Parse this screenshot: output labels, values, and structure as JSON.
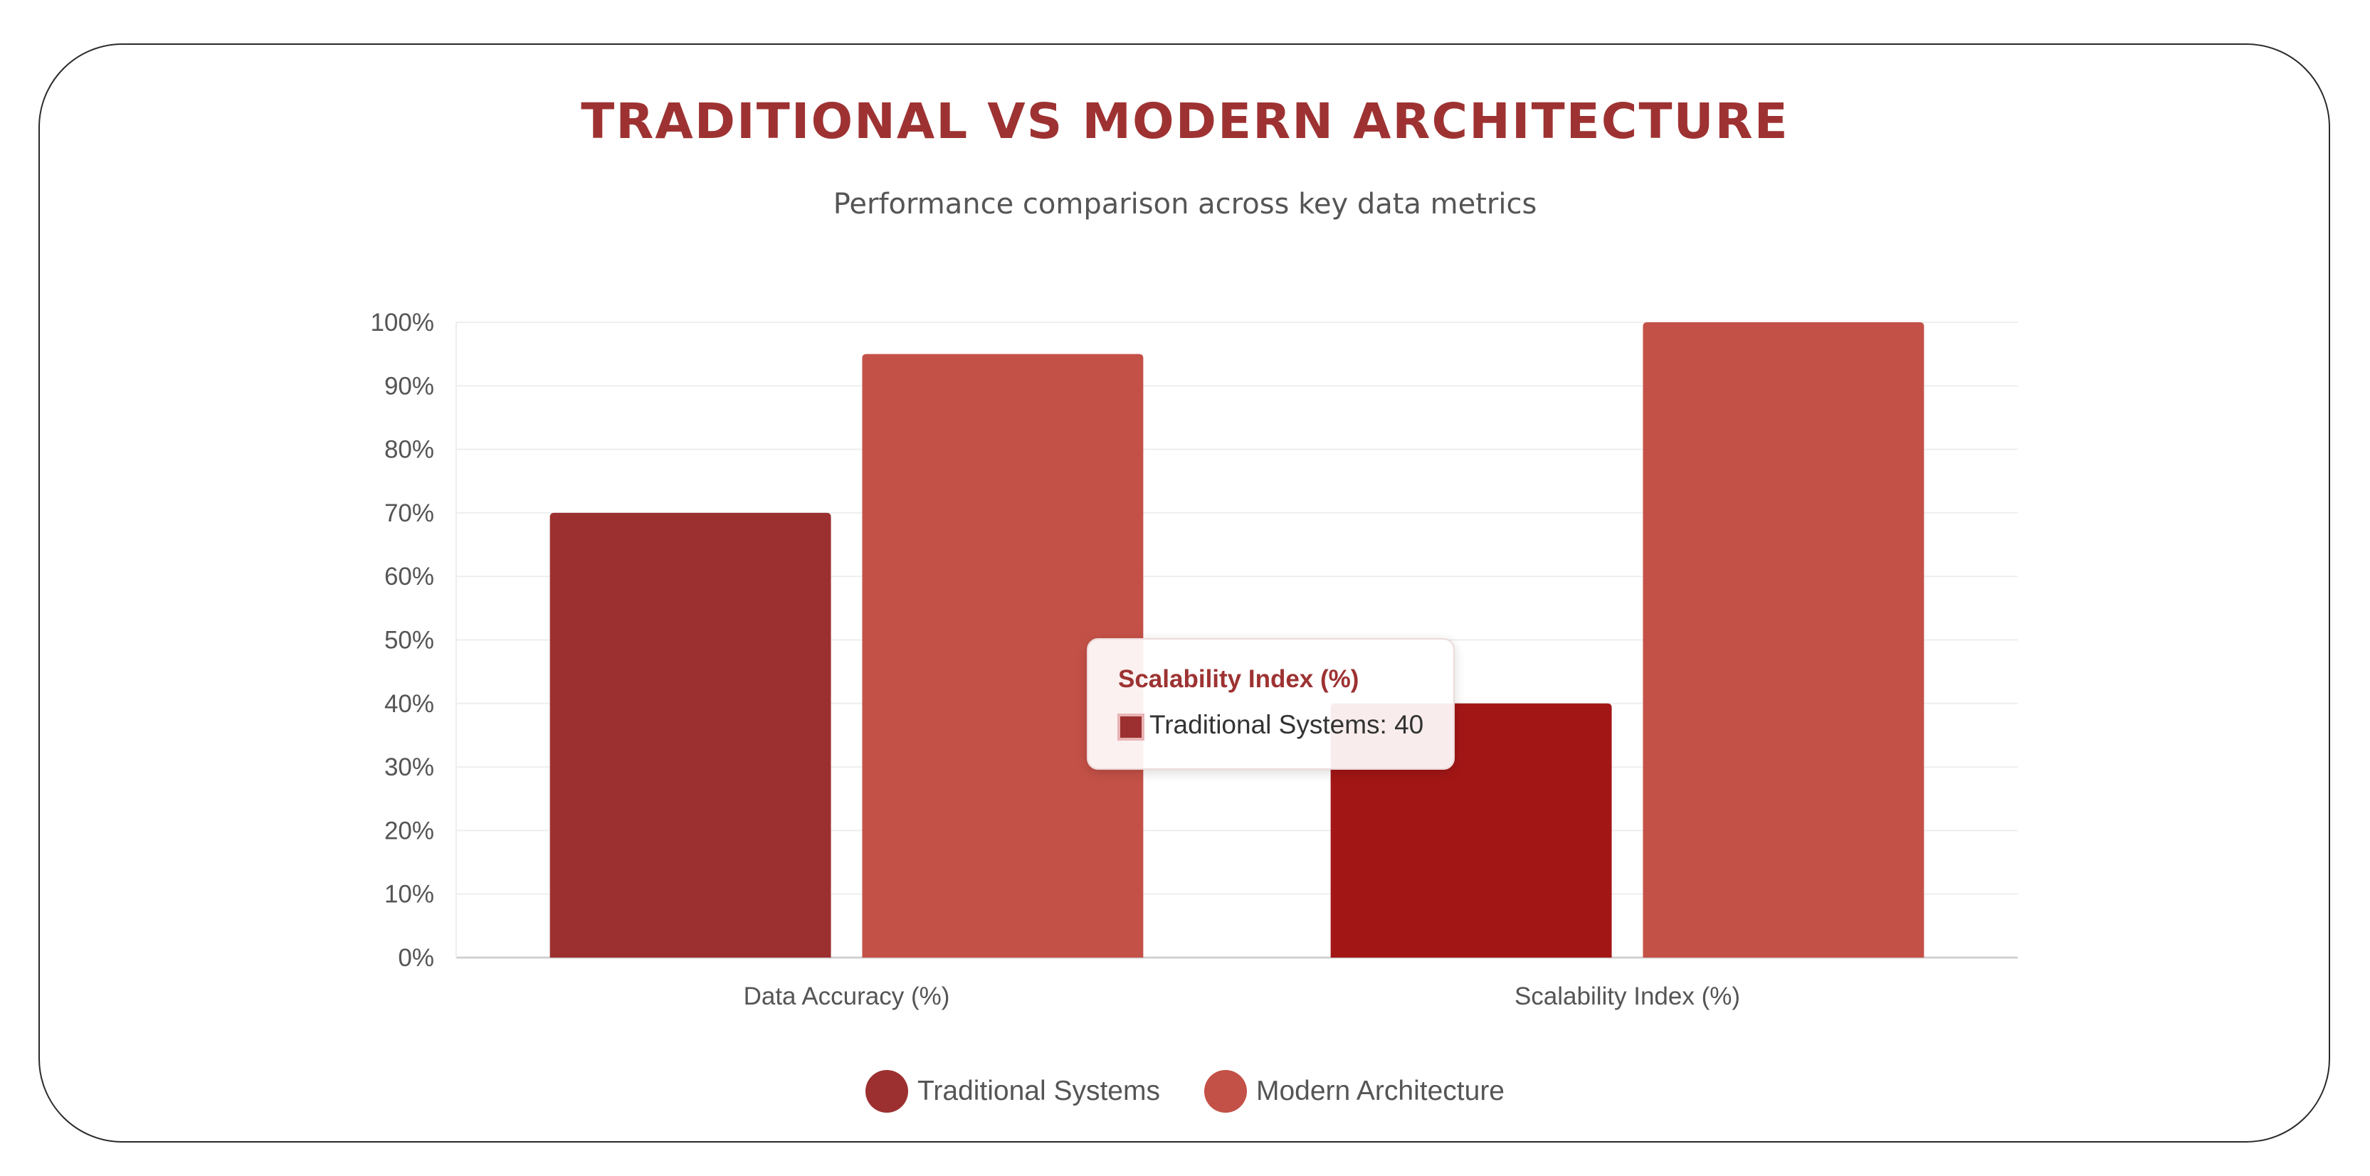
{
  "header": {
    "title": "TRADITIONAL VS MODERN ARCHITECTURE",
    "subtitle": "Performance comparison across key data metrics"
  },
  "colors": {
    "traditional": "#9c3030",
    "traditional_hover": "#a31616",
    "modern": "#c45147",
    "title": "#9e3232",
    "grid": "#eeeeee",
    "axis": "#d0d0d0"
  },
  "chart_data": {
    "type": "bar",
    "categories": [
      "Data Accuracy (%)",
      "Scalability Index (%)"
    ],
    "series": [
      {
        "name": "Traditional Systems",
        "values": [
          70,
          40
        ]
      },
      {
        "name": "Modern Architecture",
        "values": [
          95,
          100
        ]
      }
    ],
    "ylim": [
      0,
      100
    ],
    "y_ticks": [
      "0%",
      "10%",
      "20%",
      "30%",
      "40%",
      "50%",
      "60%",
      "70%",
      "80%",
      "90%",
      "100%"
    ],
    "grid": true,
    "legend": "bottom",
    "highlighted": {
      "series": 0,
      "category": 1
    }
  },
  "tooltip": {
    "title": "Scalability Index (%)",
    "text": "Traditional Systems: 40"
  },
  "legend": {
    "items": [
      {
        "label": "Traditional Systems",
        "color": "#9c3030"
      },
      {
        "label": "Modern Architecture",
        "color": "#c45147"
      }
    ]
  }
}
